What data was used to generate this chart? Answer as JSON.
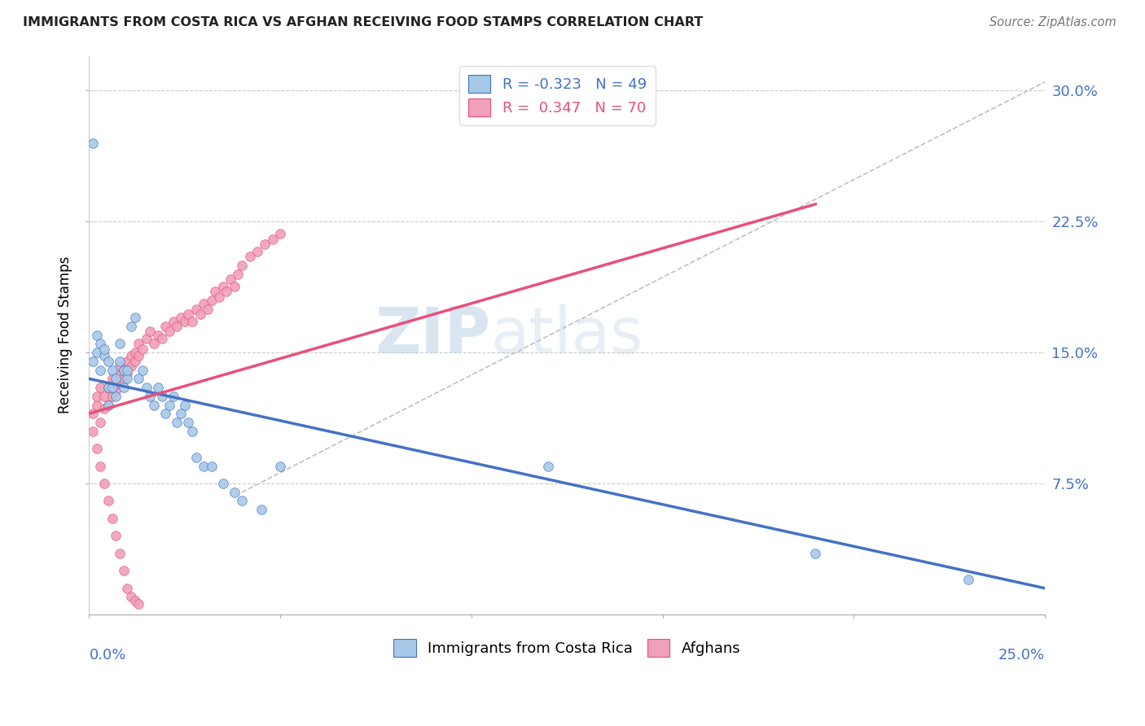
{
  "title": "IMMIGRANTS FROM COSTA RICA VS AFGHAN RECEIVING FOOD STAMPS CORRELATION CHART",
  "source": "Source: ZipAtlas.com",
  "ylabel": "Receiving Food Stamps",
  "yticks": [
    "7.5%",
    "15.0%",
    "22.5%",
    "30.0%"
  ],
  "ytick_vals": [
    0.075,
    0.15,
    0.225,
    0.3
  ],
  "xlim": [
    0.0,
    0.25
  ],
  "ylim": [
    0.0,
    0.32
  ],
  "legend_cr": "R = -0.323   N = 49",
  "legend_af": "R =  0.347   N = 70",
  "legend_bottom_cr": "Immigrants from Costa Rica",
  "legend_bottom_af": "Afghans",
  "blue_color": "#A8C8E8",
  "pink_color": "#F0A0B8",
  "blue_line_color": "#4472C4",
  "pink_line_color": "#E8507A",
  "dashed_line_color": "#C0C0C0",
  "watermark_zip": "ZIP",
  "watermark_atlas": "atlas",
  "cr_scatter_x": [
    0.001,
    0.002,
    0.002,
    0.003,
    0.003,
    0.004,
    0.004,
    0.005,
    0.005,
    0.005,
    0.006,
    0.006,
    0.007,
    0.007,
    0.008,
    0.008,
    0.009,
    0.009,
    0.01,
    0.01,
    0.011,
    0.012,
    0.013,
    0.014,
    0.015,
    0.016,
    0.017,
    0.018,
    0.019,
    0.02,
    0.021,
    0.022,
    0.023,
    0.024,
    0.025,
    0.026,
    0.027,
    0.028,
    0.03,
    0.032,
    0.035,
    0.038,
    0.04,
    0.045,
    0.05,
    0.12,
    0.19,
    0.23,
    0.001
  ],
  "cr_scatter_y": [
    0.145,
    0.15,
    0.16,
    0.14,
    0.155,
    0.148,
    0.152,
    0.12,
    0.13,
    0.145,
    0.13,
    0.14,
    0.125,
    0.135,
    0.145,
    0.155,
    0.13,
    0.14,
    0.135,
    0.14,
    0.165,
    0.17,
    0.135,
    0.14,
    0.13,
    0.125,
    0.12,
    0.13,
    0.125,
    0.115,
    0.12,
    0.125,
    0.11,
    0.115,
    0.12,
    0.11,
    0.105,
    0.09,
    0.085,
    0.085,
    0.075,
    0.07,
    0.065,
    0.06,
    0.085,
    0.085,
    0.035,
    0.02,
    0.27
  ],
  "af_scatter_x": [
    0.001,
    0.002,
    0.002,
    0.003,
    0.003,
    0.004,
    0.004,
    0.005,
    0.005,
    0.006,
    0.006,
    0.007,
    0.007,
    0.008,
    0.008,
    0.009,
    0.009,
    0.01,
    0.01,
    0.011,
    0.011,
    0.012,
    0.012,
    0.013,
    0.013,
    0.014,
    0.015,
    0.016,
    0.017,
    0.018,
    0.019,
    0.02,
    0.021,
    0.022,
    0.023,
    0.024,
    0.025,
    0.026,
    0.027,
    0.028,
    0.029,
    0.03,
    0.031,
    0.032,
    0.033,
    0.034,
    0.035,
    0.036,
    0.037,
    0.038,
    0.039,
    0.04,
    0.042,
    0.044,
    0.046,
    0.048,
    0.05,
    0.001,
    0.002,
    0.003,
    0.004,
    0.005,
    0.006,
    0.007,
    0.008,
    0.009,
    0.01,
    0.011,
    0.012,
    0.013
  ],
  "af_scatter_y": [
    0.115,
    0.12,
    0.125,
    0.11,
    0.13,
    0.118,
    0.125,
    0.13,
    0.12,
    0.125,
    0.135,
    0.128,
    0.132,
    0.138,
    0.142,
    0.135,
    0.14,
    0.138,
    0.145,
    0.142,
    0.148,
    0.145,
    0.15,
    0.155,
    0.148,
    0.152,
    0.158,
    0.162,
    0.155,
    0.16,
    0.158,
    0.165,
    0.162,
    0.168,
    0.165,
    0.17,
    0.168,
    0.172,
    0.168,
    0.175,
    0.172,
    0.178,
    0.175,
    0.18,
    0.185,
    0.182,
    0.188,
    0.185,
    0.192,
    0.188,
    0.195,
    0.2,
    0.205,
    0.208,
    0.212,
    0.215,
    0.218,
    0.105,
    0.095,
    0.085,
    0.075,
    0.065,
    0.055,
    0.045,
    0.035,
    0.025,
    0.015,
    0.01,
    0.008,
    0.006
  ],
  "blue_line_x": [
    0.0,
    0.25
  ],
  "blue_line_y": [
    0.135,
    0.015
  ],
  "pink_line_x": [
    0.0,
    0.19
  ],
  "pink_line_y": [
    0.115,
    0.235
  ],
  "dashed_line_x": [
    0.04,
    0.25
  ],
  "dashed_line_y": [
    0.07,
    0.305
  ]
}
